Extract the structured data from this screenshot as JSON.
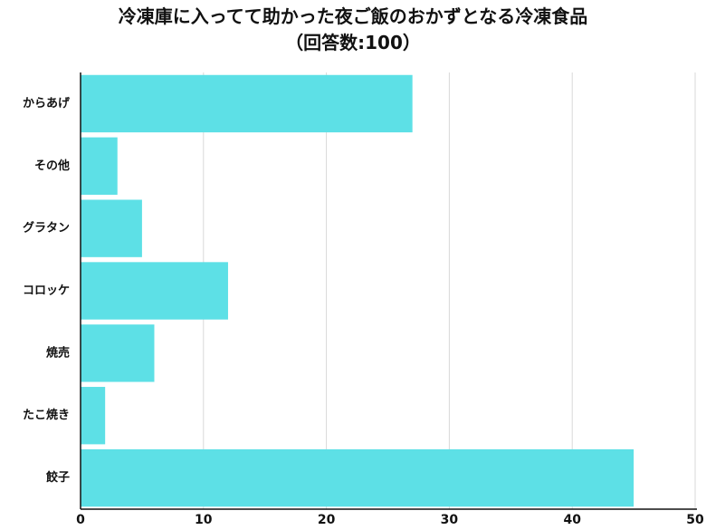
{
  "chart_data": {
    "type": "bar",
    "orientation": "horizontal",
    "title": "冷凍庫に入ってて助かった夜ご飯のおかずとなる冷凍食品",
    "subtitle": "（回答数:100）",
    "categories": [
      "からあげ",
      "その他",
      "グラタン",
      "コロッケ",
      "焼売",
      "たこ焼き",
      "餃子"
    ],
    "values": [
      27,
      3,
      5,
      12,
      6,
      2,
      45
    ],
    "xlabel": "",
    "ylabel": "",
    "xlim": [
      0,
      50
    ],
    "xticks": [
      0,
      10,
      20,
      30,
      40,
      50
    ],
    "grid": "vertical",
    "legend": "none",
    "bar_color": "#5de0e6",
    "grid_color": "#d9d9d9",
    "axis_color": "#111111"
  }
}
